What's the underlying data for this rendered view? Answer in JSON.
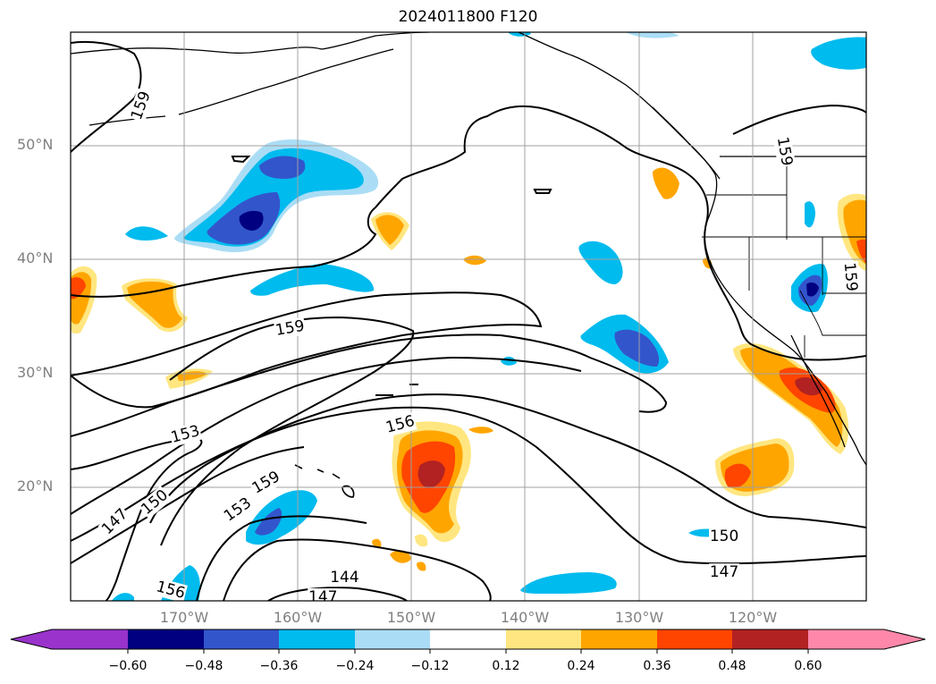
{
  "title": "2024011800 F120",
  "map": {
    "projection": "Mercator",
    "extent": {
      "lon_min": -180,
      "lon_max": -110,
      "lat_min": 10,
      "lat_max": 60
    },
    "gridlines": true,
    "lat_labels": [
      "50°N",
      "40°N",
      "30°N",
      "20°N"
    ],
    "lon_labels": [
      "170°W",
      "160°W",
      "150°W",
      "140°W",
      "130°W",
      "120°W"
    ],
    "contour_labels": [
      {
        "text": "159",
        "lon": -173.8,
        "lat": 55.5,
        "rotate": -70
      },
      {
        "text": "159",
        "lon": -117.2,
        "lat": 52.4,
        "rotate": 80
      },
      {
        "text": "159",
        "lon": -111.4,
        "lat": 42.7,
        "rotate": 85
      },
      {
        "text": "159",
        "lon": -160.7,
        "lat": 38.2,
        "rotate": -10
      },
      {
        "text": "156",
        "lon": -151.0,
        "lat": 29.0,
        "rotate": -15
      },
      {
        "text": "153",
        "lon": -169.9,
        "lat": 28.0,
        "rotate": -15
      },
      {
        "text": "159",
        "lon": -162.8,
        "lat": 23.0,
        "rotate": -30
      },
      {
        "text": "153",
        "lon": -165.3,
        "lat": 20.1,
        "rotate": -35
      },
      {
        "text": "150",
        "lon": -172.6,
        "lat": 20.9,
        "rotate": -40
      },
      {
        "text": "147",
        "lon": -176.1,
        "lat": 18.8,
        "rotate": -45
      },
      {
        "text": "156",
        "lon": -171.2,
        "lat": 11.2,
        "rotate": 15
      },
      {
        "text": "144",
        "lon": -155.9,
        "lat": 12.6,
        "rotate": 0
      },
      {
        "text": "147",
        "lon": -157.8,
        "lat": 10.4,
        "rotate": 0
      },
      {
        "text": "150",
        "lon": -122.5,
        "lat": 17.2,
        "rotate": 0
      },
      {
        "text": "147",
        "lon": -122.5,
        "lat": 13.2,
        "rotate": 0
      }
    ]
  },
  "colorbar": {
    "extend": "both",
    "ticks": [
      "−0.60",
      "−0.48",
      "−0.36",
      "−0.24",
      "−0.12",
      "0.12",
      "0.24",
      "0.36",
      "0.48",
      "0.60"
    ],
    "colors": [
      "#9933cc",
      "#000080",
      "#3355cc",
      "#00bbee",
      "#aaddf5",
      "#ffffff",
      "#ffe680",
      "#ffa500",
      "#ff4500",
      "#b22222",
      "#ff88aa"
    ]
  }
}
